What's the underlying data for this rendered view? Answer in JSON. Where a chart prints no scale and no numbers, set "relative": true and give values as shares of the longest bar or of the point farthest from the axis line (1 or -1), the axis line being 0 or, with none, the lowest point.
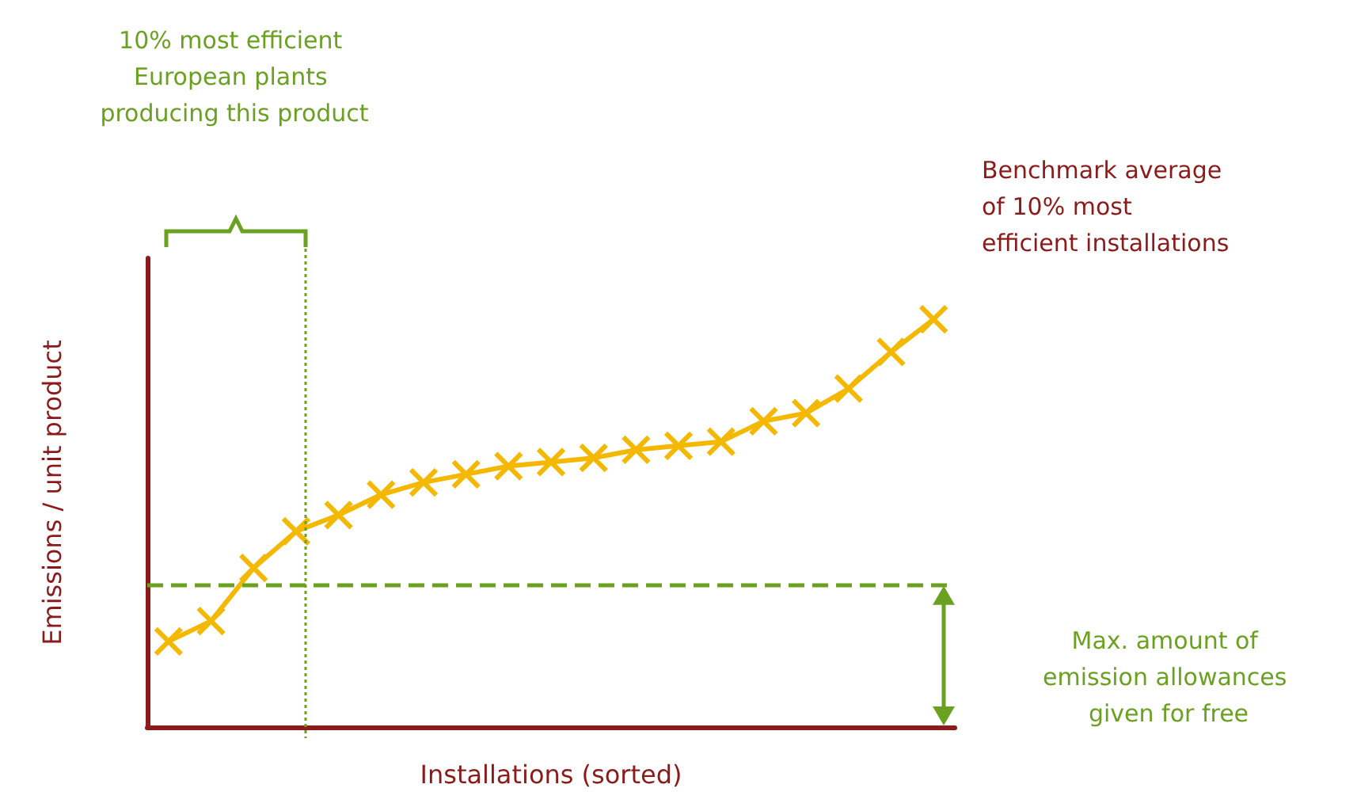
{
  "chart_data": {
    "type": "line",
    "relative": true,
    "xlabel": "Installations (sorted)",
    "ylabel": "Emissions / unit product",
    "categories": [
      null,
      null,
      null,
      null,
      null,
      null,
      null,
      null,
      null,
      null,
      null,
      null,
      null,
      null,
      null,
      null,
      null,
      null,
      null
    ],
    "series": [
      {
        "color": "#f5b800",
        "values": [
          0.21,
          0.26,
          0.39,
          0.48,
          0.52,
          0.57,
          0.6,
          0.62,
          0.64,
          0.65,
          0.66,
          0.68,
          0.69,
          0.7,
          0.75,
          0.77,
          0.83,
          0.92,
          1.0
        ]
      }
    ],
    "marker": "cross",
    "ref_lines": [
      {
        "axis": "y",
        "value": 0.35,
        "label": null,
        "color": "#6aa121",
        "line_style": "dashed"
      }
    ],
    "annotations": [
      "10% most efficient European plants producing this product",
      "Benchmark average of 10% most efficient installations",
      "Max. amount of emission allowances given for free"
    ]
  }
}
